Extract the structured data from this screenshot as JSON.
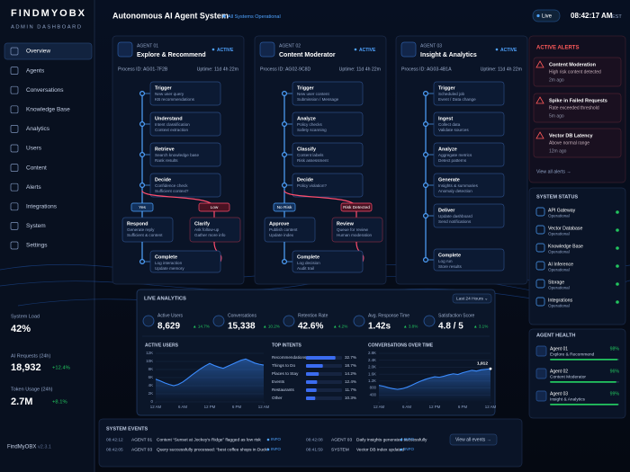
{
  "sidebar": {
    "logo": "FINDMYOBX",
    "subtitle": "ADMIN DASHBOARD",
    "nav": [
      "Overview",
      "Agents",
      "Conversations",
      "Knowledge Base",
      "Analytics",
      "Users",
      "Content",
      "Alerts",
      "Integrations",
      "System",
      "Settings"
    ],
    "stats": [
      {
        "label": "System Load",
        "value": "42%"
      },
      {
        "label": "AI Requests (24h)",
        "value": "18,932",
        "change": "+12.4%"
      },
      {
        "label": "Token Usage (24h)",
        "value": "2.7M",
        "change": "+8.1%"
      }
    ],
    "footer": {
      "name": "FindMyOBX",
      "version": "v2.3.1"
    }
  },
  "header": {
    "title": "Autonomous AI Agent System",
    "status": "All Systems Operational",
    "live": "Live",
    "time": "08:42:17 AM",
    "timezone": "EST"
  },
  "agents": [
    {
      "label": "AGENT 01",
      "name": "Explore & Recommend",
      "status": "ACTIVE",
      "process_id": "Process ID: AG01-7F2B",
      "uptime": "Uptime: 11d 4h 22m",
      "steps": [
        {
          "title": "Trigger",
          "lines": [
            "New user query",
            "KB recommendations"
          ]
        },
        {
          "title": "Understand",
          "lines": [
            "Intent classification",
            "Context extraction"
          ]
        },
        {
          "title": "Retrieve",
          "lines": [
            "Search knowledge base",
            "Rank results"
          ]
        },
        {
          "title": "Decide",
          "lines": [
            "Confidence check",
            "Sufficient context?"
          ]
        }
      ],
      "branch_labels": [
        "Yes",
        "Low"
      ],
      "branch_steps": [
        {
          "title": "Respond",
          "lines": [
            "Generate reply",
            "Sufficient & content"
          ]
        },
        {
          "title": "Clarify",
          "lines": [
            "Ask follow-up",
            "Gather more info"
          ]
        }
      ],
      "final_step": {
        "title": "Complete",
        "lines": [
          "Log interaction",
          "Update memory"
        ]
      }
    },
    {
      "label": "AGENT 02",
      "name": "Content Moderator",
      "status": "ACTIVE",
      "process_id": "Process ID: AG02-9C8D",
      "uptime": "Uptime: 11d 4h 22m",
      "steps": [
        {
          "title": "Trigger",
          "lines": [
            "New user content",
            "Submission / Message"
          ]
        },
        {
          "title": "Analyze",
          "lines": [
            "Policy checks",
            "Safety scanning"
          ]
        },
        {
          "title": "Classify",
          "lines": [
            "Content labels",
            "Risk assessment"
          ]
        },
        {
          "title": "Decide",
          "lines": [
            "Policy violation?"
          ]
        }
      ],
      "branch_labels": [
        "No Risk",
        "Risk Detected"
      ],
      "branch_steps": [
        {
          "title": "Approve",
          "lines": [
            "Publish content",
            "Update index"
          ]
        },
        {
          "title": "Review",
          "lines": [
            "Queue for review",
            "Human moderation"
          ]
        }
      ],
      "final_step": {
        "title": "Complete",
        "lines": [
          "Log decision",
          "Audit trail"
        ]
      }
    },
    {
      "label": "AGENT 03",
      "name": "Insight & Analytics",
      "status": "ACTIVE",
      "process_id": "Process ID: AG03-4B1A",
      "uptime": "Uptime: 11d 4h 22m",
      "steps": [
        {
          "title": "Trigger",
          "lines": [
            "Scheduled job",
            "Event / Data change"
          ]
        },
        {
          "title": "Ingest",
          "lines": [
            "Collect data",
            "Validate sources"
          ]
        },
        {
          "title": "Analyze",
          "lines": [
            "Aggregate metrics",
            "Detect patterns"
          ]
        },
        {
          "title": "Generate",
          "lines": [
            "Insights & summaries",
            "Anomaly detection"
          ]
        },
        {
          "title": "Deliver",
          "lines": [
            "Update dashboard",
            "Send notifications"
          ]
        }
      ],
      "final_step": {
        "title": "Complete",
        "lines": [
          "Log run",
          "Store results"
        ]
      }
    }
  ],
  "alerts": {
    "title": "ACTIVE ALERTS",
    "items": [
      {
        "title": "Content Moderation",
        "text": "High risk content detected",
        "time": "2m ago"
      },
      {
        "title": "Spike in Failed Requests",
        "text": "Rate exceeded threshold",
        "time": "5m ago"
      },
      {
        "title": "Vector DB Latency",
        "text": "Above normal range",
        "time": "12m ago"
      }
    ],
    "link": "View all alerts →"
  },
  "system_status": {
    "title": "SYSTEM STATUS",
    "items": [
      {
        "name": "API Gateway",
        "status": "Operational"
      },
      {
        "name": "Vector Database",
        "status": "Operational"
      },
      {
        "name": "Knowledge Base",
        "status": "Operational"
      },
      {
        "name": "AI Inference",
        "status": "Operational"
      },
      {
        "name": "Storage",
        "status": "Operational"
      },
      {
        "name": "Integrations",
        "status": "Operational"
      }
    ]
  },
  "agent_health": {
    "title": "AGENT HEALTH",
    "xlim": [
      0,
      100
    ],
    "items": [
      {
        "label": "Agent 01",
        "name": "Explore & Recommend",
        "value": 98,
        "value_label": "98%"
      },
      {
        "label": "Agent 02",
        "name": "Content Moderator",
        "value": 96,
        "value_label": "96%"
      },
      {
        "label": "Agent 03",
        "name": "Insight & Analytics",
        "value": 99,
        "value_label": "99%"
      }
    ]
  },
  "analytics": {
    "title": "LIVE ANALYTICS",
    "range": "Last 24 Hours ⌄",
    "kpis": [
      {
        "label": "Active Users",
        "value": "8,629",
        "change": "▲ 14.7%"
      },
      {
        "label": "Conversations",
        "value": "15,338",
        "change": "▲ 10.2%"
      },
      {
        "label": "Retention Rate",
        "value": "42.6%",
        "change": "▲ 4.2%"
      },
      {
        "label": "Avg. Response Time",
        "value": "1.42s",
        "change": "▲ 3.8%"
      },
      {
        "label": "Satisfaction Score",
        "value": "4.8 / 5",
        "change": "▲ 3.1%"
      }
    ],
    "active_users": {
      "type": "line",
      "title": "ACTIVE USERS",
      "x": [
        0,
        1,
        2,
        3,
        4,
        5,
        6,
        7,
        8,
        9,
        10,
        11,
        12,
        13,
        14,
        15,
        16,
        17,
        18,
        19,
        20,
        21,
        22,
        23,
        24
      ],
      "values": [
        5600,
        5200,
        4700,
        4300,
        4000,
        4300,
        4900,
        5700,
        6600,
        7400,
        8200,
        8900,
        9500,
        9000,
        8600,
        8300,
        8800,
        9300,
        9800,
        10300,
        10600,
        10100,
        9600,
        9300,
        9100
      ],
      "xlim": [
        0,
        24
      ],
      "xticks": [
        {
          "value": 0,
          "label": "12 AM"
        },
        {
          "value": 6,
          "label": "6 AM"
        },
        {
          "value": 12,
          "label": "12 PM"
        },
        {
          "value": 18,
          "label": "6 PM"
        },
        {
          "value": 24,
          "label": "12 AM"
        }
      ],
      "ylim": [
        0,
        12000
      ],
      "yticks": [
        0,
        {
          "value": 2000,
          "label": "2K"
        },
        {
          "value": 4000,
          "label": "4K"
        },
        {
          "value": 6000,
          "label": "6K"
        },
        {
          "value": 8000,
          "label": "8K"
        },
        {
          "value": 10000,
          "label": "10K"
        },
        {
          "value": 12000,
          "label": "12K"
        }
      ],
      "color": "#3b8cff"
    },
    "top_intents": {
      "type": "bar",
      "title": "TOP INTENTS",
      "categories": [
        "Recommendations",
        "Things to Do",
        "Places to Stay",
        "Events",
        "Restaurants",
        "Other"
      ],
      "values": [
        32.7,
        18.7,
        14.2,
        12.4,
        11.7,
        10.3
      ],
      "value_labels": [
        "32.7%",
        "18.7%",
        "14.2%",
        "12.4%",
        "11.7%",
        "10.3%"
      ],
      "xlim": [
        0,
        40
      ],
      "color": "#3b6cf0"
    },
    "conversations": {
      "type": "line",
      "title": "CONVERSATIONS OVER TIME",
      "x": [
        0,
        1,
        2,
        3,
        4,
        5,
        6,
        7,
        8,
        9,
        10,
        11,
        12,
        13,
        14,
        15,
        16,
        17,
        18,
        19,
        20,
        21,
        22,
        23,
        24
      ],
      "values": [
        950,
        900,
        820,
        760,
        720,
        760,
        840,
        950,
        1080,
        1200,
        1300,
        1380,
        1450,
        1420,
        1480,
        1560,
        1620,
        1580,
        1680,
        1750,
        1820,
        1780,
        1850,
        1880,
        1912
      ],
      "end_label": "1,912",
      "xlim": [
        0,
        24
      ],
      "xticks": [
        {
          "value": 0,
          "label": "12 AM"
        },
        {
          "value": 6,
          "label": "6 AM"
        },
        {
          "value": 12,
          "label": "12 PM"
        },
        {
          "value": 18,
          "label": "6 PM"
        },
        {
          "value": 24,
          "label": "12 AM"
        }
      ],
      "ylim": [
        0,
        2800
      ],
      "yticks": [
        400,
        800,
        {
          "value": 1200,
          "label": "1.2K"
        },
        {
          "value": 1600,
          "label": "1.6K"
        },
        {
          "value": 2000,
          "label": "2.0K"
        },
        {
          "value": 2400,
          "label": "2.4K"
        },
        {
          "value": 2800,
          "label": "2.8K"
        }
      ],
      "color": "#3b8cff"
    }
  },
  "events": {
    "title": "SYSTEM EVENTS",
    "items": [
      {
        "time": "08:42:12",
        "source": "AGENT 01",
        "message": "Content “Sunset at Jockey's Ridge” flagged as low risk",
        "level": "INFO"
      },
      {
        "time": "08:42:08",
        "source": "AGENT 03",
        "message": "Daily insights generated successfully",
        "level": "INFO"
      },
      {
        "time": "08:42:05",
        "source": "AGENT 03",
        "message": "Query successfully processed: “best coffee shops in Duck”",
        "level": "INFO"
      },
      {
        "time": "08:41:59",
        "source": "SYSTEM",
        "message": "Vector DB index updated",
        "level": "INFO"
      }
    ],
    "link": "View all events →"
  }
}
